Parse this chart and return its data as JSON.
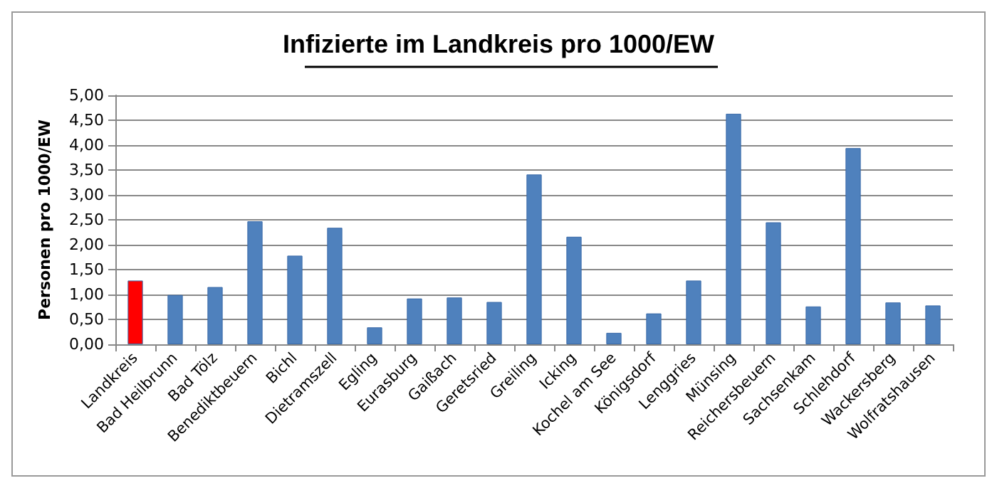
{
  "chart_data": {
    "type": "bar",
    "title": "Infizierte im Landkreis pro 1000/EW",
    "ylabel": "Personen pro 1000/EW",
    "categories": [
      "Landkreis",
      "Bad Heilbrunn",
      "Bad Tölz",
      "Benediktbeuern",
      "Bichl",
      "Dietramszell",
      "Egling",
      "Eurasburg",
      "Gaißach",
      "Geretsried",
      "Greiling",
      "Icking",
      "Kochel am See",
      "Königsdorf",
      "Lenggries",
      "Münsing",
      "Reichersbeuern",
      "Sachsenkam",
      "Schlehdorf",
      "Wackersberg",
      "Wolfratshausen"
    ],
    "values": [
      1.28,
      0.99,
      1.15,
      2.47,
      1.78,
      2.34,
      0.34,
      0.92,
      0.94,
      0.85,
      3.41,
      2.16,
      0.23,
      0.62,
      1.28,
      4.63,
      2.45,
      0.76,
      3.94,
      0.84,
      0.78
    ],
    "colors": [
      "#ff0000",
      "#4f81bd",
      "#4f81bd",
      "#4f81bd",
      "#4f81bd",
      "#4f81bd",
      "#4f81bd",
      "#4f81bd",
      "#4f81bd",
      "#4f81bd",
      "#4f81bd",
      "#4f81bd",
      "#4f81bd",
      "#4f81bd",
      "#4f81bd",
      "#4f81bd",
      "#4f81bd",
      "#4f81bd",
      "#4f81bd",
      "#4f81bd",
      "#4f81bd"
    ],
    "ylim": [
      0,
      5
    ],
    "yticks": [
      {
        "value": 0,
        "label": "0,00"
      },
      {
        "value": 0.5,
        "label": "0,50"
      },
      {
        "value": 1,
        "label": "1,00"
      },
      {
        "value": 1.5,
        "label": "1,50"
      },
      {
        "value": 2,
        "label": "2,00"
      },
      {
        "value": 2.5,
        "label": "2,50"
      },
      {
        "value": 3,
        "label": "3,00"
      },
      {
        "value": 3.5,
        "label": "3,50"
      },
      {
        "value": 4,
        "label": "4,00"
      },
      {
        "value": 4.5,
        "label": "4,50"
      },
      {
        "value": 5,
        "label": "5,00"
      }
    ],
    "grid": "y"
  }
}
